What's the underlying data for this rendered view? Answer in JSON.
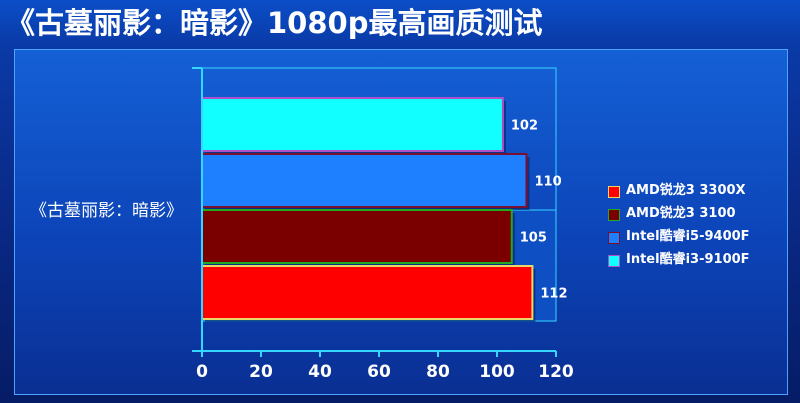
{
  "page_title": "《古墓丽影：暗影》1080p最高画质测试",
  "chart_data": {
    "type": "bar",
    "orientation": "horizontal",
    "title": "《古墓丽影：暗影》1080p最高画质测试",
    "categories": [
      "《古墓丽影：暗影》"
    ],
    "series": [
      {
        "name": "AMD锐龙3 3300X",
        "values": [
          112
        ],
        "color": "#ff0000",
        "border": "#e8d86a"
      },
      {
        "name": "AMD锐龙3 3100",
        "values": [
          105
        ],
        "color": "#7a0000",
        "border": "#22aa22"
      },
      {
        "name": "Intel酷睿i5-9400F",
        "values": [
          110
        ],
        "color": "#1e7fff",
        "border": "#7a0f2e"
      },
      {
        "name": "Intel酷睿i3-9100F",
        "values": [
          102
        ],
        "color": "#12ffff",
        "border": "#b050c8"
      }
    ],
    "bar_order_top_to_bottom": [
      "Intel酷睿i3-9100F",
      "Intel酷睿i5-9400F",
      "AMD锐龙3 3100",
      "AMD锐龙3 3300X"
    ],
    "data_labels": [
      "102",
      "110",
      "105",
      "112"
    ],
    "xlim": [
      0,
      120
    ],
    "x_ticks": [
      "0",
      "20",
      "40",
      "60",
      "80",
      "100",
      "120"
    ],
    "xlabel": "",
    "ylabel": "",
    "legend_position": "right",
    "grid": false
  },
  "colors": {
    "background": "#0a2c8c",
    "panel": "#1560d6",
    "axis": "#35d6ff",
    "text": "#ffffff"
  }
}
